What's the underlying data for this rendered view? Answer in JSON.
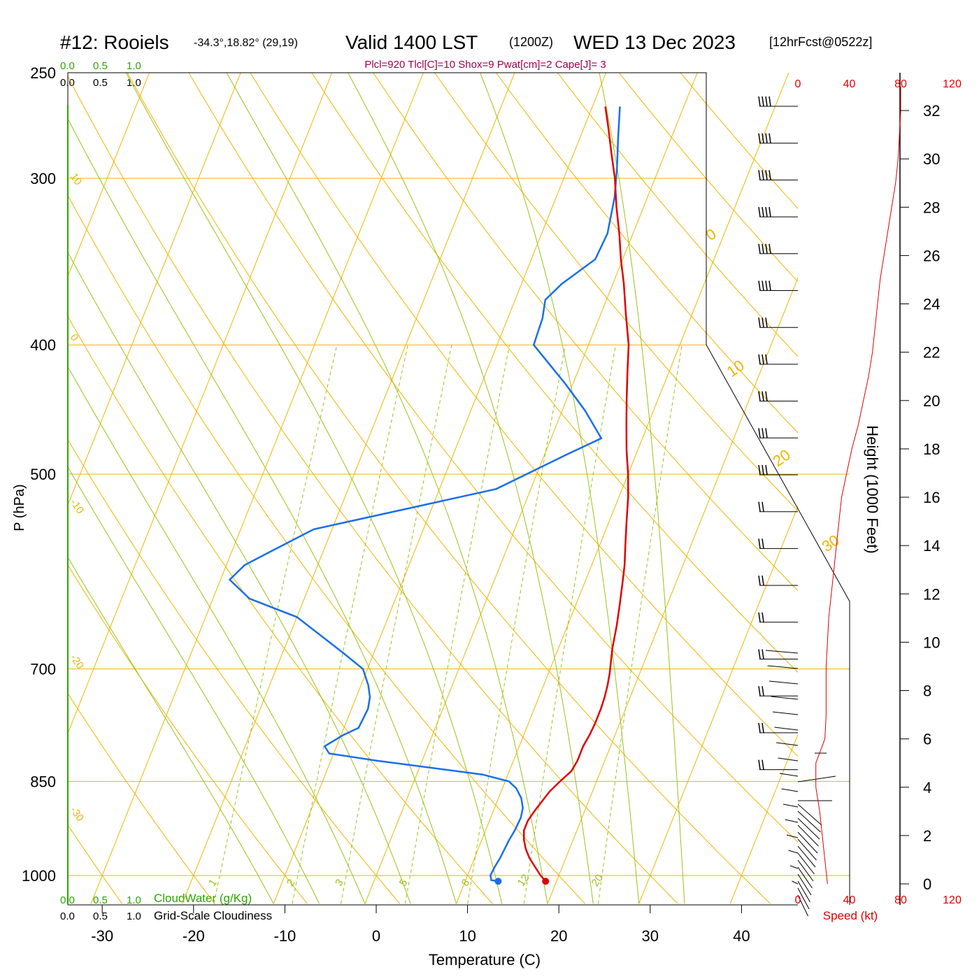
{
  "header": {
    "station": "#12: Rooiels",
    "coords": "-34.3°,18.82° (29,19)",
    "valid": "Valid 1400 LST",
    "utc": "(1200Z)",
    "date": "WED 13 Dec 2023",
    "forecast": "[12hrFcst@0522z]",
    "params": "Plcl=920 Tlcl[C]=10 Shox=9 Pwat[cm]=2 Cape[J]= 3"
  },
  "cloud": {
    "scale_top": [
      "0.0",
      "0.5",
      "1.0"
    ],
    "scale_bottom": [
      "0.0",
      "0.5",
      "1.0"
    ],
    "cloudwater_label": "CloudWater (g/Kg)",
    "cloudiness_label": "Grid-Scale Cloudiness"
  },
  "axes": {
    "xlabel": "Temperature (C)",
    "ylabel": "P (hPa)",
    "height_label": "Height (1000 Feet)",
    "speed_label": "Speed (kt)",
    "x_ticks": [
      -30,
      -20,
      -10,
      0,
      10,
      20,
      30,
      40
    ],
    "p_ticks": [
      250,
      300,
      400,
      500,
      700,
      850,
      1000
    ],
    "height_ticks": [
      0,
      2,
      4,
      6,
      8,
      10,
      12,
      14,
      16,
      18,
      20,
      22,
      24,
      26,
      28,
      30,
      32
    ],
    "speed_ticks": [
      0,
      40,
      80,
      120
    ]
  },
  "colors": {
    "temperature": "#e00000",
    "dewpoint": "#1a6fe8",
    "isobar": "#f0b400",
    "adiabat": "#f0b400",
    "moist_adiabat": "#9ac21a",
    "mixing_ratio": "#9ac21a",
    "params_text": "#a0004a",
    "speed": "#e00000",
    "cloud": "#2aa800"
  },
  "chart_data": {
    "type": "line",
    "series": [
      {
        "key": "temperature",
        "points": [
          [
            18.8,
            1010
          ],
          [
            18.0,
            1000
          ],
          [
            17.0,
            985
          ],
          [
            16.0,
            970
          ],
          [
            15.2,
            955
          ],
          [
            14.6,
            940
          ],
          [
            14.2,
            925
          ],
          [
            14.2,
            910
          ],
          [
            14.5,
            895
          ],
          [
            14.9,
            880
          ],
          [
            15.3,
            865
          ],
          [
            16.0,
            850
          ],
          [
            16.8,
            835
          ],
          [
            17.0,
            820
          ],
          [
            17.0,
            800
          ],
          [
            17.2,
            785
          ],
          [
            17.3,
            770
          ],
          [
            17.3,
            750
          ],
          [
            17.2,
            735
          ],
          [
            17.0,
            720
          ],
          [
            16.7,
            705
          ],
          [
            16.3,
            690
          ],
          [
            15.9,
            675
          ],
          [
            15.4,
            650
          ],
          [
            14.9,
            630
          ],
          [
            14.2,
            605
          ],
          [
            13.6,
            585
          ],
          [
            12.8,
            565
          ],
          [
            12.0,
            545
          ],
          [
            11.0,
            520
          ],
          [
            10.0,
            500
          ],
          [
            8.8,
            480
          ],
          [
            7.7,
            460
          ],
          [
            6.6,
            440
          ],
          [
            5.5,
            420
          ],
          [
            4.4,
            400
          ],
          [
            2.8,
            380
          ],
          [
            1.2,
            360
          ],
          [
            -0.2,
            345
          ],
          [
            -1.5,
            330
          ],
          [
            -3.0,
            315
          ],
          [
            -4.4,
            300
          ],
          [
            -5.8,
            288
          ],
          [
            -7.2,
            276
          ],
          [
            -8.6,
            265
          ]
        ]
      },
      {
        "key": "dewpoint",
        "points": [
          [
            13.6,
            1010
          ],
          [
            12.8,
            1008
          ],
          [
            12.5,
            1000
          ],
          [
            12.6,
            985
          ],
          [
            12.8,
            970
          ],
          [
            12.9,
            955
          ],
          [
            13.0,
            940
          ],
          [
            13.2,
            925
          ],
          [
            13.3,
            905
          ],
          [
            13.1,
            890
          ],
          [
            12.5,
            875
          ],
          [
            11.5,
            860
          ],
          [
            10.4,
            850
          ],
          [
            7.2,
            840
          ],
          [
            -5.0,
            820
          ],
          [
            -10.5,
            810
          ],
          [
            -11.3,
            800
          ],
          [
            -9.8,
            785
          ],
          [
            -8.4,
            775
          ],
          [
            -8.2,
            750
          ],
          [
            -8.5,
            735
          ],
          [
            -9.2,
            720
          ],
          [
            -10.5,
            700
          ],
          [
            -13.5,
            680
          ],
          [
            -20.0,
            640
          ],
          [
            -26.0,
            620
          ],
          [
            -29.0,
            600
          ],
          [
            -28.0,
            585
          ],
          [
            -25.5,
            570
          ],
          [
            -22.0,
            550
          ],
          [
            -3.8,
            513
          ],
          [
            2.5,
            483
          ],
          [
            5.5,
            470
          ],
          [
            2.5,
            448
          ],
          [
            -0.8,
            428
          ],
          [
            -6.0,
            400
          ],
          [
            -6.2,
            382
          ],
          [
            -6.7,
            370
          ],
          [
            -5.6,
            360
          ],
          [
            -3.0,
            345
          ],
          [
            -2.8,
            330
          ],
          [
            -3.6,
            310
          ],
          [
            -4.6,
            295
          ],
          [
            -5.8,
            280
          ],
          [
            -7.0,
            265
          ]
        ]
      }
    ],
    "surface_markers": {
      "temperature": [
        18.8,
        1010
      ],
      "dewpoint": [
        13.6,
        1010
      ]
    },
    "xlim": [
      -33,
      47
    ],
    "ylim": [
      1050,
      250
    ],
    "log_pressure": true,
    "skew": true,
    "dry_adiabat_labels": [
      "10",
      "0",
      "-10",
      "-20",
      "-30"
    ],
    "dry_adiabat_labels_right": [
      "0",
      "10",
      "20",
      "30"
    ],
    "mixing_ratio_labels": [
      "1",
      "2",
      "3",
      "5",
      "8",
      "12",
      "20"
    ],
    "wind_speed_profile": [
      [
        23,
        0
      ],
      [
        21,
        1
      ],
      [
        19,
        2
      ],
      [
        17,
        3
      ],
      [
        14,
        4
      ],
      [
        14,
        5
      ],
      [
        21,
        6
      ],
      [
        22,
        7
      ],
      [
        22,
        8
      ],
      [
        22,
        9
      ],
      [
        23,
        10
      ],
      [
        24,
        11
      ],
      [
        26,
        12
      ],
      [
        28,
        13
      ],
      [
        30,
        14
      ],
      [
        32,
        15
      ],
      [
        34,
        16
      ],
      [
        38,
        17
      ],
      [
        42,
        18
      ],
      [
        47,
        19
      ],
      [
        51,
        20
      ],
      [
        55,
        21
      ],
      [
        58,
        22
      ],
      [
        60,
        23
      ],
      [
        62,
        24
      ],
      [
        64,
        25
      ],
      [
        67,
        26
      ],
      [
        70,
        27
      ],
      [
        73,
        28
      ],
      [
        76,
        29
      ],
      [
        78,
        30
      ],
      [
        79,
        31
      ],
      [
        80,
        32
      ],
      [
        80,
        33
      ]
    ],
    "grid": true
  }
}
